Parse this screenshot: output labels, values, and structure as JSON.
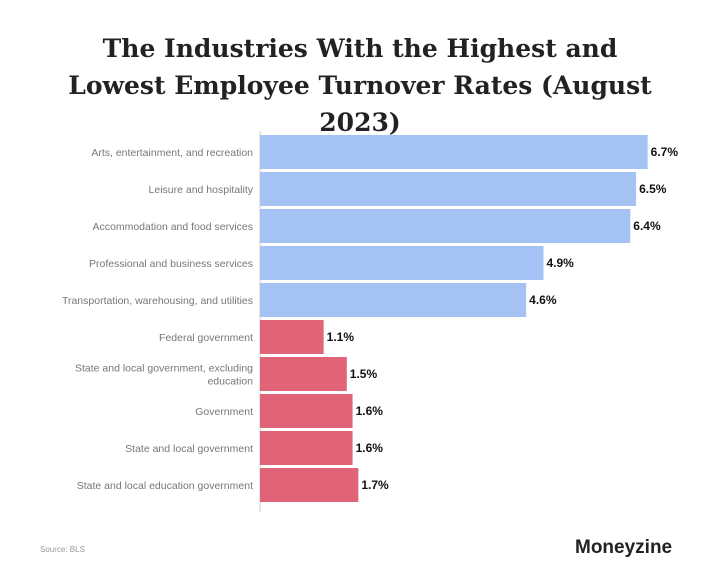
{
  "chart_data": {
    "type": "hbar",
    "title": "The Industries With the Highest and Lowest Employee Turnover Rates (August 2023)",
    "categories": [
      "Arts, entertainment, and recreation",
      "Leisure and hospitality",
      "Accommodation and food services",
      "Professional and business services",
      "Transportation, warehousing, and utilities",
      "Federal government",
      "State and local government, excluding education",
      "Government",
      "State and local government",
      "State and local education government"
    ],
    "values": [
      6.7,
      6.5,
      6.4,
      4.9,
      4.6,
      1.1,
      1.5,
      1.6,
      1.6,
      1.7
    ],
    "value_labels": [
      "6.7%",
      "6.5%",
      "6.4%",
      "4.9%",
      "4.6%",
      "1.1%",
      "1.5%",
      "1.6%",
      "1.6%",
      "1.7%"
    ],
    "colors": [
      "#a4c2f4",
      "#a4c2f4",
      "#a4c2f4",
      "#a4c2f4",
      "#a4c2f4",
      "#e06377",
      "#e06377",
      "#e06377",
      "#e06377",
      "#e06377"
    ],
    "xlim": [
      0,
      7
    ],
    "source": "Source: BLS",
    "brand": "Moneyzine"
  }
}
